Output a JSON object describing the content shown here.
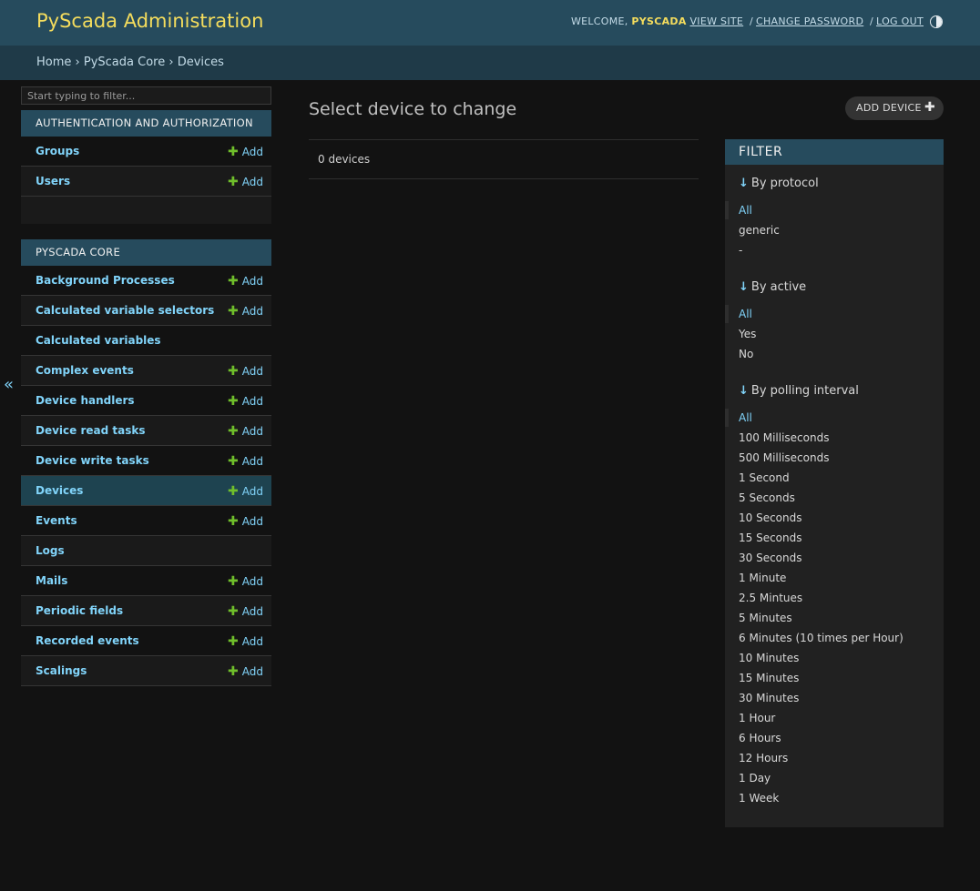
{
  "header": {
    "branding": "PyScada Administration",
    "welcome": "Welcome,",
    "username": "pyscada",
    "view_site": "View site",
    "change_password": "Change password",
    "log_out": "Log out",
    "separator": "/"
  },
  "breadcrumbs": {
    "home": "Home",
    "app": "PyScada Core",
    "current": "Devices",
    "sep": "›"
  },
  "nav": {
    "filter_placeholder": "Start typing to filter...",
    "collapse_glyph": "«",
    "add_label": "Add",
    "auth": {
      "caption": "Authentication and Authorization",
      "items": [
        {
          "label": "Groups"
        },
        {
          "label": "Users"
        }
      ]
    },
    "core": {
      "caption": "PyScada Core",
      "items": [
        {
          "label": "Background Processes"
        },
        {
          "label": "Calculated variable selectors"
        },
        {
          "label": "Calculated variables"
        },
        {
          "label": "Complex events"
        },
        {
          "label": "Device handlers"
        },
        {
          "label": "Device read tasks"
        },
        {
          "label": "Device write tasks"
        },
        {
          "label": "Devices"
        },
        {
          "label": "Events"
        },
        {
          "label": "Logs"
        },
        {
          "label": "Mails"
        },
        {
          "label": "Periodic fields"
        },
        {
          "label": "Recorded events"
        },
        {
          "label": "Scalings"
        }
      ]
    }
  },
  "content": {
    "title": "Select device to change",
    "add_button": "Add device",
    "result_count": "0 devices"
  },
  "filter": {
    "title": "Filter",
    "groups": [
      {
        "heading": "By protocol",
        "choices": [
          "All",
          "generic",
          "-"
        ]
      },
      {
        "heading": "By active",
        "choices": [
          "All",
          "Yes",
          "No"
        ]
      },
      {
        "heading": "By polling interval",
        "choices": [
          "All",
          "100 Milliseconds",
          "500 Milliseconds",
          "1 Second",
          "5 Seconds",
          "10 Seconds",
          "15 Seconds",
          "30 Seconds",
          "1 Minute",
          "2.5 Mintues",
          "5 Minutes",
          "6 Minutes (10 times per Hour)",
          "10 Minutes",
          "15 Minutes",
          "30 Minutes",
          "1 Hour",
          "6 Hours",
          "12 Hours",
          "1 Day",
          "1 Week"
        ]
      }
    ]
  },
  "colors": {
    "header_bg": "#264b5d",
    "branding": "#f5dd5d",
    "link": "#81d4fa",
    "add_plus": "#70bf2b",
    "page_bg": "#121212"
  }
}
